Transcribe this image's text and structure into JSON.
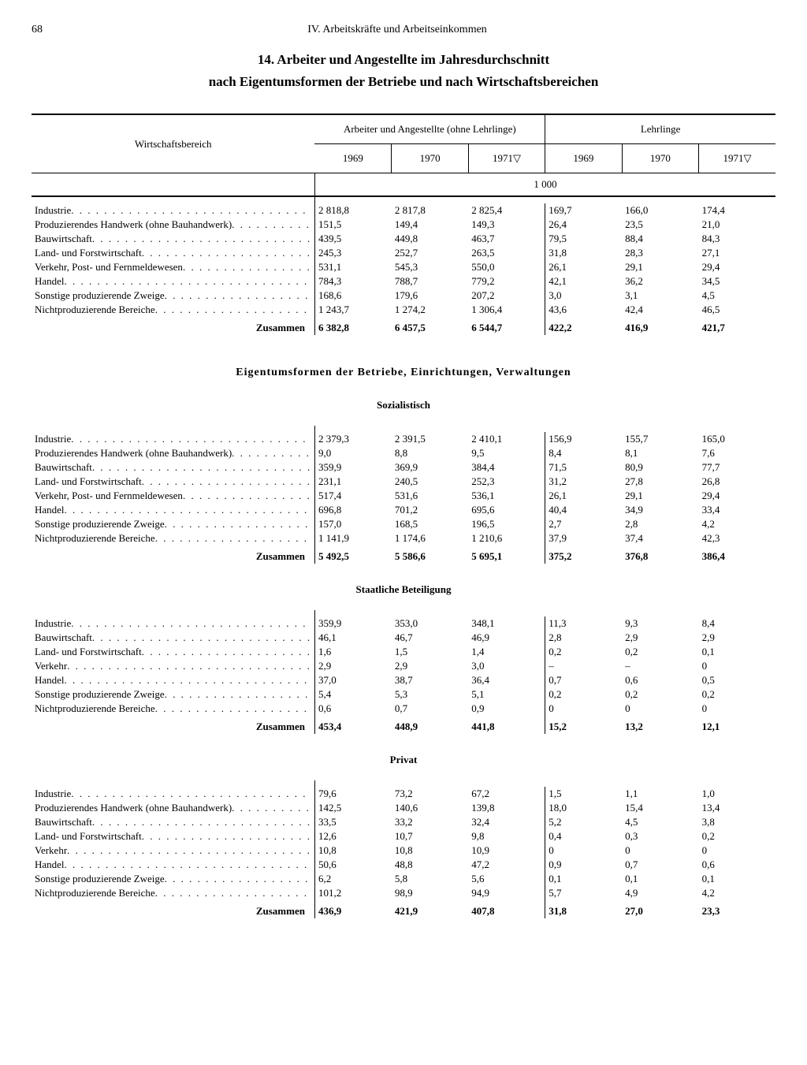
{
  "page_number": "68",
  "chapter_title": "IV. Arbeitskräfte und Arbeitseinkommen",
  "title_line1": "14. Arbeiter und Angestellte im Jahresdurchschnitt",
  "title_line2": "nach Eigentumsformen der Betriebe und nach Wirtschaftsbereichen",
  "col_headers": {
    "sector": "Wirtschaftsbereich",
    "group1": "Arbeiter und Angestellte (ohne Lehrlinge)",
    "group2": "Lehrlinge",
    "y1969": "1969",
    "y1970": "1970",
    "y1971": "1971▽"
  },
  "unit_label": "1 000",
  "section_title": "Eigentumsformen der Betriebe, Einrichtungen, Verwaltungen",
  "subsections": {
    "sozialistisch": "Sozialistisch",
    "staatlich": "Staatliche Beteiligung",
    "privat": "Privat"
  },
  "row_labels": {
    "industrie": "Industrie",
    "handwerk": "Produzierendes Handwerk (ohne Bauhandwerk)",
    "bau": "Bauwirtschaft",
    "landforst": "Land- und Forstwirtschaft",
    "verkehr_pf": "Verkehr, Post- und Fernmeldewesen",
    "verkehr": "Verkehr",
    "handel": "Handel",
    "sonstige": "Sonstige produzierende Zweige",
    "nichtprod": "Nichtproduzierende Bereiche",
    "zusammen": "Zusammen"
  },
  "tables": {
    "main": {
      "rows": [
        {
          "k": "industrie",
          "v": [
            "2 818,8",
            "2 817,8",
            "2 825,4",
            "169,7",
            "166,0",
            "174,4"
          ]
        },
        {
          "k": "handwerk",
          "v": [
            "151,5",
            "149,4",
            "149,3",
            "26,4",
            "23,5",
            "21,0"
          ]
        },
        {
          "k": "bau",
          "v": [
            "439,5",
            "449,8",
            "463,7",
            "79,5",
            "88,4",
            "84,3"
          ]
        },
        {
          "k": "landforst",
          "v": [
            "245,3",
            "252,7",
            "263,5",
            "31,8",
            "28,3",
            "27,1"
          ]
        },
        {
          "k": "verkehr_pf",
          "v": [
            "531,1",
            "545,3",
            "550,0",
            "26,1",
            "29,1",
            "29,4"
          ]
        },
        {
          "k": "handel",
          "v": [
            "784,3",
            "788,7",
            "779,2",
            "42,1",
            "36,2",
            "34,5"
          ]
        },
        {
          "k": "sonstige",
          "v": [
            "168,6",
            "179,6",
            "207,2",
            "3,0",
            "3,1",
            "4,5"
          ]
        },
        {
          "k": "nichtprod",
          "v": [
            "1 243,7",
            "1 274,2",
            "1 306,4",
            "43,6",
            "42,4",
            "46,5"
          ]
        }
      ],
      "sum": [
        "6 382,8",
        "6 457,5",
        "6 544,7",
        "422,2",
        "416,9",
        "421,7"
      ]
    },
    "sozialistisch": {
      "rows": [
        {
          "k": "industrie",
          "v": [
            "2 379,3",
            "2 391,5",
            "2 410,1",
            "156,9",
            "155,7",
            "165,0"
          ]
        },
        {
          "k": "handwerk",
          "v": [
            "9,0",
            "8,8",
            "9,5",
            "8,4",
            "8,1",
            "7,6"
          ]
        },
        {
          "k": "bau",
          "v": [
            "359,9",
            "369,9",
            "384,4",
            "71,5",
            "80,9",
            "77,7"
          ]
        },
        {
          "k": "landforst",
          "v": [
            "231,1",
            "240,5",
            "252,3",
            "31,2",
            "27,8",
            "26,8"
          ]
        },
        {
          "k": "verkehr_pf",
          "v": [
            "517,4",
            "531,6",
            "536,1",
            "26,1",
            "29,1",
            "29,4"
          ]
        },
        {
          "k": "handel",
          "v": [
            "696,8",
            "701,2",
            "695,6",
            "40,4",
            "34,9",
            "33,4"
          ]
        },
        {
          "k": "sonstige",
          "v": [
            "157,0",
            "168,5",
            "196,5",
            "2,7",
            "2,8",
            "4,2"
          ]
        },
        {
          "k": "nichtprod",
          "v": [
            "1 141,9",
            "1 174,6",
            "1 210,6",
            "37,9",
            "37,4",
            "42,3"
          ]
        }
      ],
      "sum": [
        "5 492,5",
        "5 586,6",
        "5 695,1",
        "375,2",
        "376,8",
        "386,4"
      ]
    },
    "staatlich": {
      "rows": [
        {
          "k": "industrie",
          "v": [
            "359,9",
            "353,0",
            "348,1",
            "11,3",
            "9,3",
            "8,4"
          ]
        },
        {
          "k": "bau",
          "v": [
            "46,1",
            "46,7",
            "46,9",
            "2,8",
            "2,9",
            "2,9"
          ]
        },
        {
          "k": "landforst",
          "v": [
            "1,6",
            "1,5",
            "1,4",
            "0,2",
            "0,2",
            "0,1"
          ]
        },
        {
          "k": "verkehr",
          "v": [
            "2,9",
            "2,9",
            "3,0",
            "–",
            "–",
            "0"
          ]
        },
        {
          "k": "handel",
          "v": [
            "37,0",
            "38,7",
            "36,4",
            "0,7",
            "0,6",
            "0,5"
          ]
        },
        {
          "k": "sonstige",
          "v": [
            "5,4",
            "5,3",
            "5,1",
            "0,2",
            "0,2",
            "0,2"
          ]
        },
        {
          "k": "nichtprod",
          "v": [
            "0,6",
            "0,7",
            "0,9",
            "0",
            "0",
            "0"
          ]
        }
      ],
      "sum": [
        "453,4",
        "448,9",
        "441,8",
        "15,2",
        "13,2",
        "12,1"
      ]
    },
    "privat": {
      "rows": [
        {
          "k": "industrie",
          "v": [
            "79,6",
            "73,2",
            "67,2",
            "1,5",
            "1,1",
            "1,0"
          ]
        },
        {
          "k": "handwerk",
          "v": [
            "142,5",
            "140,6",
            "139,8",
            "18,0",
            "15,4",
            "13,4"
          ]
        },
        {
          "k": "bau",
          "v": [
            "33,5",
            "33,2",
            "32,4",
            "5,2",
            "4,5",
            "3,8"
          ]
        },
        {
          "k": "landforst",
          "v": [
            "12,6",
            "10,7",
            "9,8",
            "0,4",
            "0,3",
            "0,2"
          ]
        },
        {
          "k": "verkehr",
          "v": [
            "10,8",
            "10,8",
            "10,9",
            "0",
            "0",
            "0"
          ]
        },
        {
          "k": "handel",
          "v": [
            "50,6",
            "48,8",
            "47,2",
            "0,9",
            "0,7",
            "0,6"
          ]
        },
        {
          "k": "sonstige",
          "v": [
            "6,2",
            "5,8",
            "5,6",
            "0,1",
            "0,1",
            "0,1"
          ]
        },
        {
          "k": "nichtprod",
          "v": [
            "101,2",
            "98,9",
            "94,9",
            "5,7",
            "4,9",
            "4,2"
          ]
        }
      ],
      "sum": [
        "436,9",
        "421,9",
        "407,8",
        "31,8",
        "27,0",
        "23,3"
      ]
    }
  }
}
